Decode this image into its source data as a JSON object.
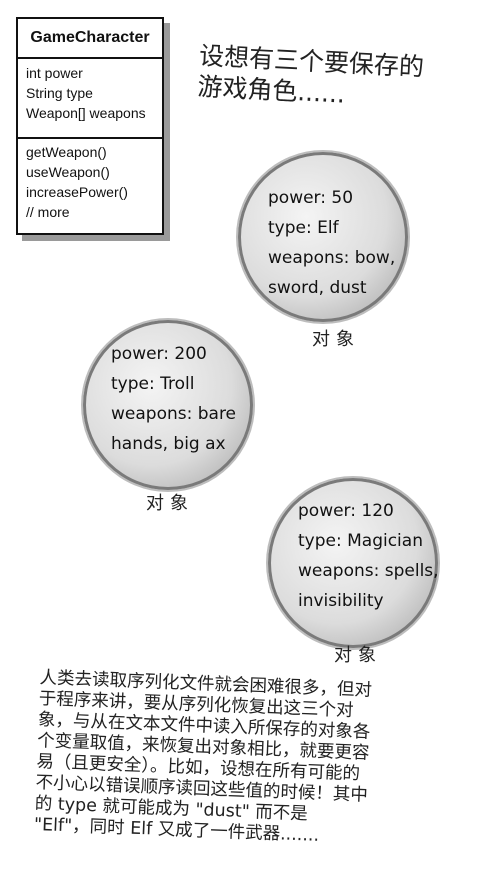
{
  "uml": {
    "title": "GameCharacter",
    "attributes": [
      "int power",
      "String type",
      "Weapon[]  weapons"
    ],
    "methods": [
      "getWeapon()",
      "useWeapon()",
      "increasePower()",
      "// more"
    ]
  },
  "headline": {
    "line1": "设想有三个要保存的",
    "line2": "游戏角色......"
  },
  "objects": [
    {
      "lines": [
        "power: 50",
        "type: Elf",
        "weapons: bow,",
        "sword, dust"
      ],
      "label": "对象"
    },
    {
      "lines": [
        "power: 200",
        "type: Troll",
        "weapons: bare",
        "hands, big ax"
      ],
      "label": "对象"
    },
    {
      "lines": [
        "power: 120",
        "type: Magician",
        "weapons: spells,",
        "invisibility"
      ],
      "label": "对象"
    }
  ],
  "paragraph": [
    "人类去读取序列化文件就会困难很多，但对",
    "于程序来讲，要从序列化恢复出这三个对",
    "象，与从在文本文件中读入所保存的对象各",
    "个变量取值，来恢复出对象相比，就要更容",
    "易（且更安全）。比如，设想在所有可能的",
    "不小心以错误顺序读回这些值的时候！其中",
    "的 type 就可能成为 \"dust\" 而不是",
    "\"Elf\"，同时 Elf 又成了一件武器......."
  ]
}
